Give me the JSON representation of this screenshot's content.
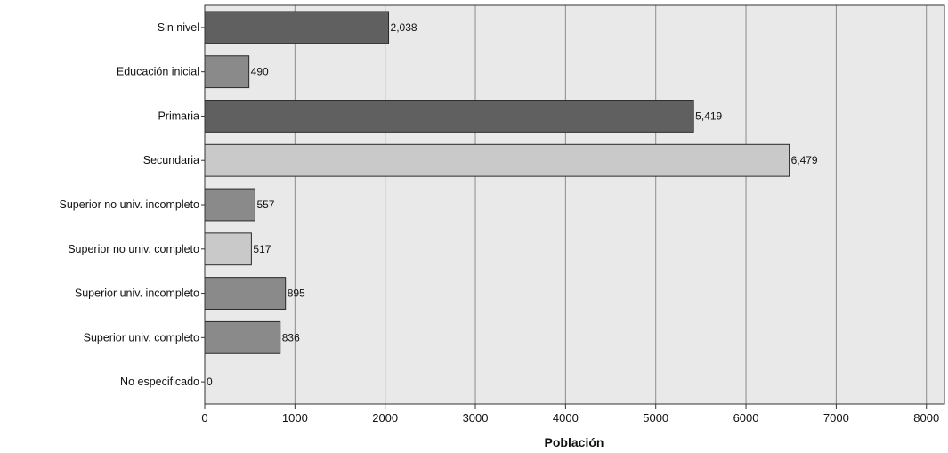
{
  "chart_data": {
    "type": "bar",
    "orientation": "horizontal",
    "categories": [
      "Sin nivel",
      "Educación inicial",
      "Primaria",
      "Secundaria",
      "Superior no univ. incompleto",
      "Superior no univ. completo",
      "Superior univ. incompleto",
      "Superior univ. completo",
      "No especificado"
    ],
    "values": [
      2038,
      490,
      5419,
      6479,
      557,
      517,
      895,
      836,
      0
    ],
    "data_labels": [
      "2,038",
      "490",
      "5,419",
      "6,479",
      "557",
      "517",
      "895",
      "836",
      "0"
    ],
    "bar_colors": [
      "#606060",
      "#8a8a8a",
      "#606060",
      "#c9c9c9",
      "#8a8a8a",
      "#c9c9c9",
      "#8a8a8a",
      "#8a8a8a",
      "#8a8a8a"
    ],
    "xlabel": "Población",
    "xlim": [
      0,
      8200
    ],
    "xticks": [
      0,
      1000,
      2000,
      3000,
      4000,
      5000,
      6000,
      7000,
      8000
    ],
    "grid": "vertical",
    "legend": "none",
    "plot_background": "#e9e9e9"
  }
}
